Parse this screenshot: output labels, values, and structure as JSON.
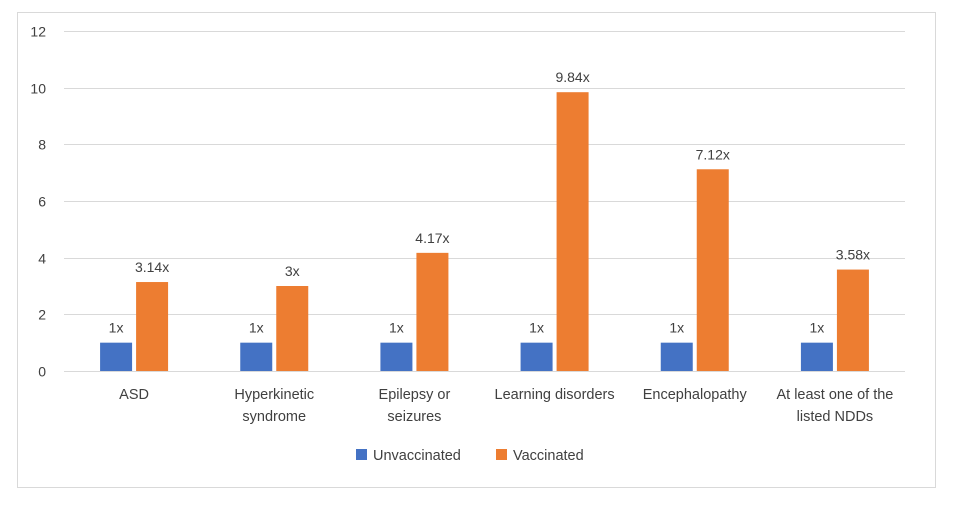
{
  "chart_data": {
    "type": "bar",
    "categories": [
      [
        "ASD"
      ],
      [
        "Hyperkinetic",
        "syndrome"
      ],
      [
        "Epilepsy or",
        "seizures"
      ],
      [
        "Learning disorders"
      ],
      [
        "Encephalopathy"
      ],
      [
        "At least one of the",
        "listed NDDs"
      ]
    ],
    "series": [
      {
        "name": "Unvaccinated",
        "color": "#4472C4",
        "values": [
          1,
          1,
          1,
          1,
          1,
          1
        ],
        "labels": [
          "1x",
          "1x",
          "1x",
          "1x",
          "1x",
          "1x"
        ]
      },
      {
        "name": "Vaccinated",
        "color": "#ED7D31",
        "values": [
          3.14,
          3,
          4.17,
          9.84,
          7.12,
          3.58
        ],
        "labels": [
          "3.14x",
          "3x",
          "4.17x",
          "9.84x",
          "7.12x",
          "3.58x"
        ]
      }
    ],
    "ylim": [
      0,
      12
    ],
    "yticks": [
      0,
      2,
      4,
      6,
      8,
      10,
      12
    ],
    "grid": true,
    "legend": "bottom"
  }
}
